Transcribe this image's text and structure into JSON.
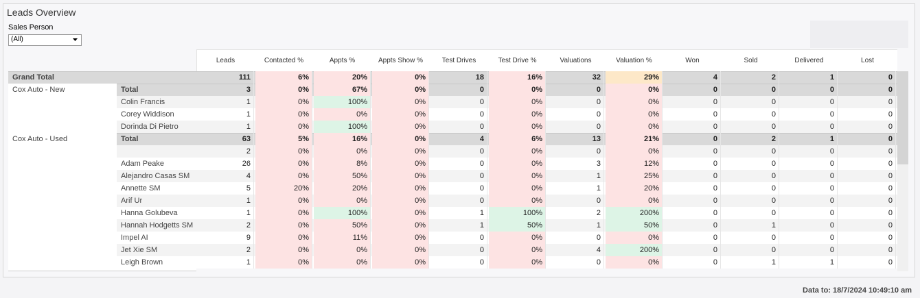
{
  "header": {
    "title": "Leads Overview"
  },
  "filter": {
    "label": "Sales Person",
    "value": "(All)"
  },
  "table": {
    "columns": [
      "Leads",
      "Contacted %",
      "Appts %",
      "Appts Show %",
      "Test Drives",
      "Test Drive %",
      "Valuations",
      "Valuation %",
      "Won",
      "Sold",
      "Delivered",
      "Lost"
    ],
    "rows": [
      {
        "group": "Grand Total",
        "name": null,
        "total": true,
        "cells": [
          "111",
          "6%",
          "20%",
          "0%",
          "18",
          "16%",
          "32",
          "29%",
          "4",
          "2",
          "1",
          "0"
        ],
        "shades": [
          null,
          "#fde3e3",
          "#fde3e3",
          "#fde3e3",
          null,
          "#fde3e3",
          null,
          "#fde8c8",
          null,
          null,
          null,
          null
        ]
      },
      {
        "group": "Cox Auto - New",
        "name": "Total",
        "total": true,
        "cells": [
          "3",
          "0%",
          "67%",
          "0%",
          "0",
          "0%",
          "0",
          "0%",
          "0",
          "0",
          "0",
          "0"
        ],
        "shades": [
          null,
          "#fde3e3",
          "#fde3e3",
          "#fde3e3",
          null,
          "#fde3e3",
          null,
          "#fde3e3",
          null,
          null,
          null,
          null
        ]
      },
      {
        "group": null,
        "name": "Colin Francis",
        "total": false,
        "cells": [
          "1",
          "0%",
          "100%",
          "0%",
          "0",
          "0%",
          "0",
          "0%",
          "0",
          "0",
          "0",
          "0"
        ],
        "shades": [
          null,
          "#fde3e3",
          "#ddf4e6",
          "#fde3e3",
          null,
          "#fde3e3",
          null,
          "#fde3e3",
          null,
          null,
          null,
          null
        ]
      },
      {
        "group": null,
        "name": "Corey Widdison",
        "total": false,
        "cells": [
          "1",
          "0%",
          "0%",
          "0%",
          "0",
          "0%",
          "0",
          "0%",
          "0",
          "0",
          "0",
          "0"
        ],
        "shades": [
          null,
          "#fde3e3",
          "#fde3e3",
          "#fde3e3",
          null,
          "#fde3e3",
          null,
          "#fde3e3",
          null,
          null,
          null,
          null
        ]
      },
      {
        "group": null,
        "name": "Dorinda  Di Pietro",
        "total": false,
        "cells": [
          "1",
          "0%",
          "100%",
          "0%",
          "0",
          "0%",
          "0",
          "0%",
          "0",
          "0",
          "0",
          "0"
        ],
        "shades": [
          null,
          "#fde3e3",
          "#ddf4e6",
          "#fde3e3",
          null,
          "#fde3e3",
          null,
          "#fde3e3",
          null,
          null,
          null,
          null
        ]
      },
      {
        "group": "Cox Auto - Used",
        "name": "Total",
        "total": true,
        "cells": [
          "63",
          "5%",
          "16%",
          "0%",
          "4",
          "6%",
          "13",
          "21%",
          "0",
          "2",
          "1",
          "0"
        ],
        "shades": [
          null,
          "#fde3e3",
          "#fde3e3",
          "#fde3e3",
          null,
          "#fde3e3",
          null,
          "#fde3e3",
          null,
          null,
          null,
          null
        ]
      },
      {
        "group": null,
        "name": null,
        "total": false,
        "cells": [
          "2",
          "0%",
          "0%",
          "0%",
          "0",
          "0%",
          "0",
          "0%",
          "0",
          "0",
          "0",
          "0"
        ],
        "shades": [
          null,
          "#fde3e3",
          "#fde3e3",
          "#fde3e3",
          null,
          "#fde3e3",
          null,
          "#fde3e3",
          null,
          null,
          null,
          null
        ]
      },
      {
        "group": null,
        "name": "Adam Peake",
        "total": false,
        "cells": [
          "26",
          "0%",
          "8%",
          "0%",
          "0",
          "0%",
          "3",
          "12%",
          "0",
          "0",
          "0",
          "0"
        ],
        "shades": [
          null,
          "#fde3e3",
          "#fde3e3",
          "#fde3e3",
          null,
          "#fde3e3",
          null,
          "#fde3e3",
          null,
          null,
          null,
          null
        ]
      },
      {
        "group": null,
        "name": "Alejandro Casas SM",
        "total": false,
        "cells": [
          "4",
          "0%",
          "50%",
          "0%",
          "0",
          "0%",
          "1",
          "25%",
          "0",
          "0",
          "0",
          "0"
        ],
        "shades": [
          null,
          "#fde3e3",
          "#fde3e3",
          "#fde3e3",
          null,
          "#fde3e3",
          null,
          "#fde3e3",
          null,
          null,
          null,
          null
        ]
      },
      {
        "group": null,
        "name": "Annette SM",
        "total": false,
        "cells": [
          "5",
          "20%",
          "20%",
          "0%",
          "0",
          "0%",
          "1",
          "20%",
          "0",
          "0",
          "0",
          "0"
        ],
        "shades": [
          null,
          "#fde3e3",
          "#fde3e3",
          "#fde3e3",
          null,
          "#fde3e3",
          null,
          "#fde3e3",
          null,
          null,
          null,
          null
        ]
      },
      {
        "group": null,
        "name": "Arif Ur",
        "total": false,
        "cells": [
          "1",
          "0%",
          "0%",
          "0%",
          "0",
          "0%",
          "0",
          "0%",
          "0",
          "0",
          "0",
          "0"
        ],
        "shades": [
          null,
          "#fde3e3",
          "#fde3e3",
          "#fde3e3",
          null,
          "#fde3e3",
          null,
          "#fde3e3",
          null,
          null,
          null,
          null
        ]
      },
      {
        "group": null,
        "name": "Hanna Golubeva",
        "total": false,
        "cells": [
          "1",
          "0%",
          "100%",
          "0%",
          "1",
          "100%",
          "2",
          "200%",
          "0",
          "0",
          "0",
          "0"
        ],
        "shades": [
          null,
          "#fde3e3",
          "#ddf4e6",
          "#fde3e3",
          null,
          "#ddf4e6",
          null,
          "#ddf4e6",
          null,
          null,
          null,
          null
        ]
      },
      {
        "group": null,
        "name": "Hannah Hodgetts SM",
        "total": false,
        "cells": [
          "2",
          "0%",
          "50%",
          "0%",
          "1",
          "50%",
          "1",
          "50%",
          "0",
          "1",
          "0",
          "0"
        ],
        "shades": [
          null,
          "#fde3e3",
          "#fde3e3",
          "#fde3e3",
          null,
          "#ddf4e6",
          null,
          "#ddf4e6",
          null,
          null,
          null,
          null
        ]
      },
      {
        "group": null,
        "name": "Impel AI",
        "total": false,
        "cells": [
          "9",
          "0%",
          "11%",
          "0%",
          "0",
          "0%",
          "0",
          "0%",
          "0",
          "0",
          "0",
          "0"
        ],
        "shades": [
          null,
          "#fde3e3",
          "#fde3e3",
          "#fde3e3",
          null,
          "#fde3e3",
          null,
          "#fde3e3",
          null,
          null,
          null,
          null
        ]
      },
      {
        "group": null,
        "name": "Jet Xie SM",
        "total": false,
        "cells": [
          "2",
          "0%",
          "0%",
          "0%",
          "0",
          "0%",
          "4",
          "200%",
          "0",
          "0",
          "0",
          "0"
        ],
        "shades": [
          null,
          "#fde3e3",
          "#fde3e3",
          "#fde3e3",
          null,
          "#fde3e3",
          null,
          "#ddf4e6",
          null,
          null,
          null,
          null
        ]
      },
      {
        "group": null,
        "name": "Leigh Brown",
        "total": false,
        "cells": [
          "1",
          "0%",
          "0%",
          "0%",
          "0",
          "0%",
          "0",
          "0%",
          "0",
          "1",
          "1",
          "0"
        ],
        "shades": [
          null,
          "#fde3e3",
          "#fde3e3",
          "#fde3e3",
          null,
          "#fde3e3",
          null,
          "#fde3e3",
          null,
          null,
          null,
          null
        ]
      }
    ]
  },
  "footer": {
    "text": "Data to: 18/7/2024 10:49:10 am"
  }
}
